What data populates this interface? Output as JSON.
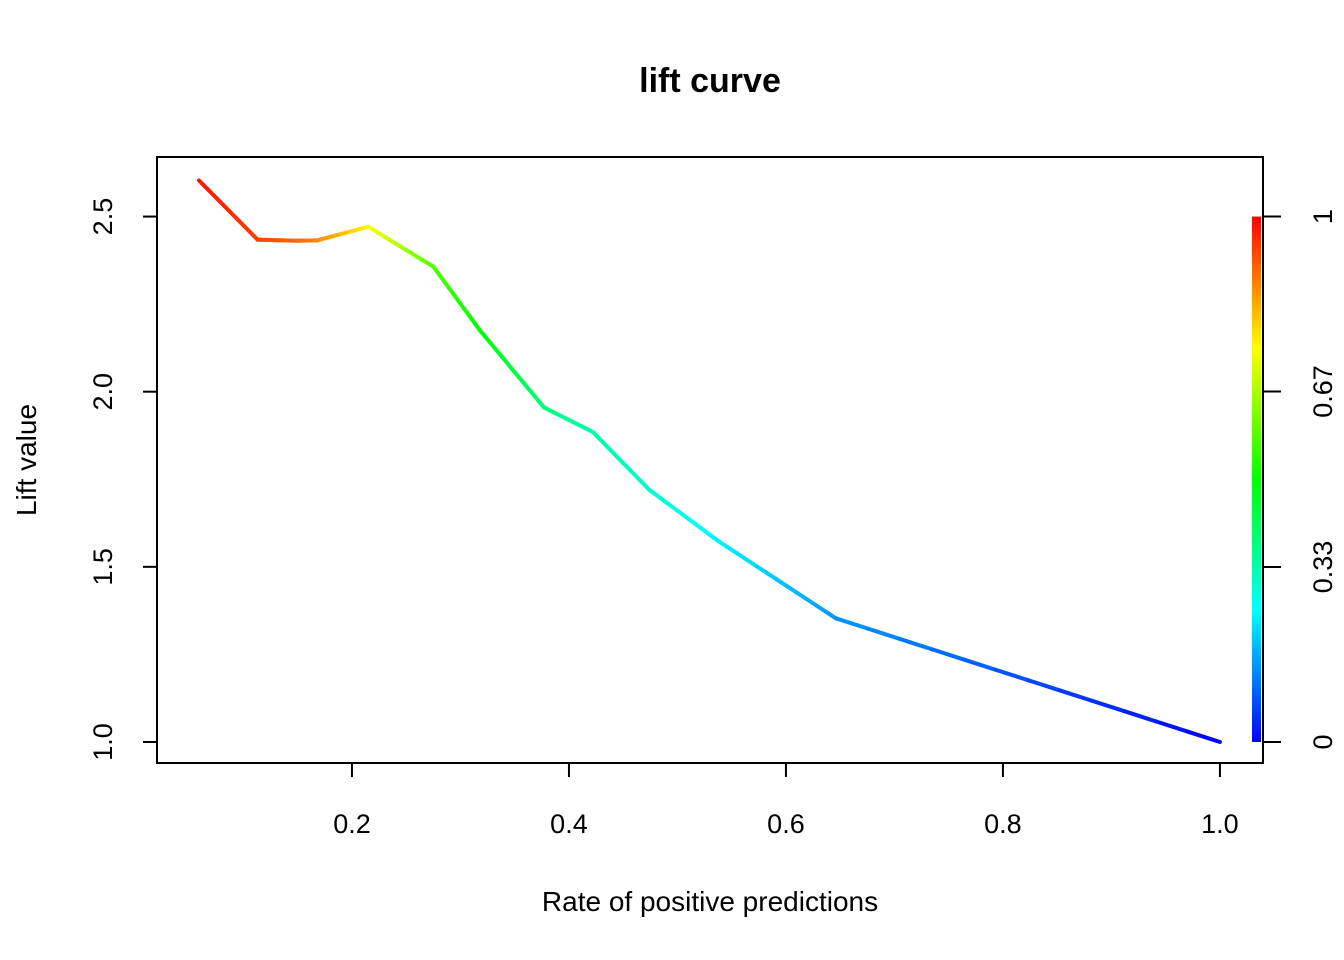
{
  "chart_data": {
    "type": "line",
    "title": "lift curve",
    "xlabel": "Rate of positive predictions",
    "ylabel": "Lift value",
    "xlim": [
      0.0203,
      1.0397
    ],
    "ylim": [
      0.94,
      2.67
    ],
    "x_ticks": [
      {
        "value": 0.2,
        "label": "0.2"
      },
      {
        "value": 0.4,
        "label": "0.4"
      },
      {
        "value": 0.6,
        "label": "0.6"
      },
      {
        "value": 0.8,
        "label": "0.8"
      },
      {
        "value": 1.0,
        "label": "1.0"
      }
    ],
    "y_ticks": [
      {
        "value": 1.0,
        "label": "1.0"
      },
      {
        "value": 1.5,
        "label": "1.5"
      },
      {
        "value": 2.0,
        "label": "2.0"
      },
      {
        "value": 2.5,
        "label": "2.5"
      }
    ],
    "colorbar": {
      "range": [
        0,
        1
      ],
      "ticks": [
        {
          "value": 0,
          "label": "0"
        },
        {
          "value": 0.333,
          "label": "0.33"
        },
        {
          "value": 0.667,
          "label": "0.67"
        },
        {
          "value": 1,
          "label": "1"
        }
      ],
      "gradient": [
        "#0000FF",
        "#00FFFF",
        "#00FF00",
        "#FFFF00",
        "#FF0000"
      ]
    },
    "series": [
      {
        "points": [
          {
            "x": 0.059,
            "y": 2.603,
            "c": 0.98
          },
          {
            "x": 0.113,
            "y": 2.434,
            "c": 0.94
          },
          {
            "x": 0.148,
            "y": 2.431,
            "c": 0.9
          },
          {
            "x": 0.168,
            "y": 2.432,
            "c": 0.87
          },
          {
            "x": 0.215,
            "y": 2.471,
            "c": 0.76
          },
          {
            "x": 0.275,
            "y": 2.357,
            "c": 0.58
          },
          {
            "x": 0.318,
            "y": 2.175,
            "c": 0.5
          },
          {
            "x": 0.377,
            "y": 1.955,
            "c": 0.38
          },
          {
            "x": 0.422,
            "y": 1.885,
            "c": 0.33
          },
          {
            "x": 0.474,
            "y": 1.72,
            "c": 0.3
          },
          {
            "x": 0.537,
            "y": 1.575,
            "c": 0.24
          },
          {
            "x": 0.646,
            "y": 1.353,
            "c": 0.15
          },
          {
            "x": 1.0,
            "y": 1.0,
            "c": 0.0
          }
        ]
      }
    ],
    "grid": false,
    "legend": "colorbar-right"
  }
}
